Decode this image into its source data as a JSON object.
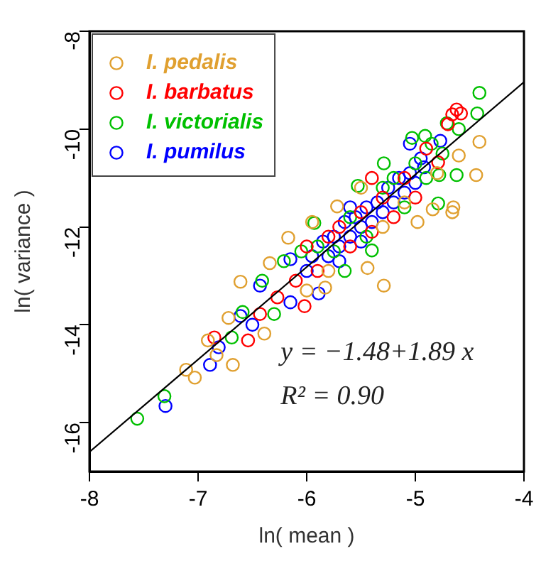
{
  "chart_data": {
    "type": "scatter",
    "xlabel": "ln( mean )",
    "ylabel": "ln( variance )",
    "xlim": [
      -8,
      -4
    ],
    "xticks": [
      -8,
      -7,
      -6,
      -5,
      -4
    ],
    "ylim": [
      -17,
      -8
    ],
    "yticks": [
      -16,
      -14,
      -12,
      -10,
      -8
    ],
    "grid": false,
    "legend": "top left",
    "marker": "circle",
    "annotations": [
      "y = −1.48+1.89 x",
      "R² = 0.90"
    ],
    "series": [
      {
        "name": "I. pedalis",
        "color": "#e0a030",
        "x": [
          -4.41,
          -4.6,
          -4.44,
          -4.65,
          -4.84,
          -4.98,
          -5.72,
          -6.17,
          -4.66,
          -5.29,
          -5.44,
          -6.34,
          -6.61,
          -5.83,
          -6.72,
          -6.39,
          -6.91,
          -6.83,
          -6.68,
          -7.11,
          -7.03,
          -5.5,
          -5.8,
          -5.3,
          -5.1,
          -4.8,
          -6.0,
          -5.95
        ],
        "values": [
          -10.26,
          -10.54,
          -10.94,
          -11.6,
          -11.64,
          -11.9,
          -11.58,
          -12.22,
          -11.7,
          -13.2,
          -12.84,
          -12.74,
          -13.12,
          -13.24,
          -13.86,
          -14.18,
          -14.32,
          -14.62,
          -14.82,
          -14.92,
          -15.08,
          -11.2,
          -12.9,
          -12.0,
          -11.5,
          -10.9,
          -13.3,
          -11.9
        ]
      },
      {
        "name": "I. barbatus",
        "color": "#ff0000",
        "x": [
          -4.58,
          -4.66,
          -5.4,
          -4.79,
          -6.27,
          -6.02,
          -6.43,
          -6.54,
          -6.85,
          -5.9,
          -5.8,
          -5.7,
          -5.6,
          -5.5,
          -5.4,
          -5.3,
          -5.2,
          -5.1,
          -5.0,
          -4.9,
          -6.1,
          -6.0,
          -4.7,
          -4.62
        ],
        "values": [
          -9.68,
          -9.7,
          -11.0,
          -10.68,
          -13.44,
          -13.62,
          -13.78,
          -14.32,
          -14.26,
          -12.9,
          -12.2,
          -12.0,
          -12.4,
          -11.7,
          -12.1,
          -11.4,
          -11.8,
          -11.0,
          -11.4,
          -10.4,
          -13.1,
          -12.4,
          -9.9,
          -9.6
        ]
      },
      {
        "name": "I. victorialis",
        "color": "#00c000",
        "x": [
          -4.41,
          -4.43,
          -4.62,
          -4.78,
          -4.79,
          -5.29,
          -5.03,
          -4.91,
          -4.71,
          -5.53,
          -5.93,
          -5.4,
          -6.21,
          -6.41,
          -6.3,
          -6.59,
          -6.69,
          -7.31,
          -7.56,
          -5.9,
          -5.75,
          -5.6,
          -5.45,
          -5.3,
          -5.2,
          -5.1,
          -5.0,
          -4.9,
          -4.85,
          -4.75,
          -4.6,
          -5.65,
          -6.05
        ],
        "values": [
          -9.26,
          -9.68,
          -10.94,
          -10.94,
          -11.52,
          -10.7,
          -10.18,
          -10.14,
          -9.88,
          -11.16,
          -11.92,
          -12.48,
          -12.7,
          -13.1,
          -13.78,
          -13.74,
          -14.26,
          -15.46,
          -15.92,
          -12.4,
          -12.5,
          -11.8,
          -12.2,
          -11.2,
          -11.0,
          -11.6,
          -10.7,
          -11.0,
          -10.3,
          -10.5,
          -10.0,
          -12.9,
          -12.5
        ]
      },
      {
        "name": "I. pumilus",
        "color": "#0000ff",
        "x": [
          -5.05,
          -4.92,
          -4.77,
          -6.15,
          -6.43,
          -6.15,
          -5.89,
          -6.61,
          -6.5,
          -6.81,
          -6.89,
          -7.3,
          -5.95,
          -5.85,
          -5.8,
          -5.75,
          -5.7,
          -5.65,
          -5.6,
          -5.55,
          -5.5,
          -5.45,
          -5.4,
          -5.35,
          -5.3,
          -5.25,
          -5.2,
          -5.15,
          -5.1,
          -5.05,
          -5.0,
          -4.95,
          -5.6,
          -5.7,
          -6.0,
          -5.5
        ],
        "values": [
          -10.3,
          -10.78,
          -10.24,
          -12.66,
          -13.2,
          -13.54,
          -13.36,
          -13.82,
          -14.0,
          -14.46,
          -14.82,
          -15.66,
          -12.6,
          -12.3,
          -12.6,
          -12.2,
          -12.4,
          -11.9,
          -12.2,
          -11.8,
          -12.0,
          -11.6,
          -11.9,
          -11.5,
          -11.7,
          -11.2,
          -11.5,
          -11.0,
          -11.3,
          -10.9,
          -11.1,
          -10.6,
          -11.6,
          -12.7,
          -12.9,
          -12.3
        ]
      },
      {
        "type": "line",
        "color": "#000000",
        "marker": "none",
        "x": [
          -8,
          -4
        ],
        "values": [
          -16.6,
          -9.04
        ]
      }
    ]
  }
}
